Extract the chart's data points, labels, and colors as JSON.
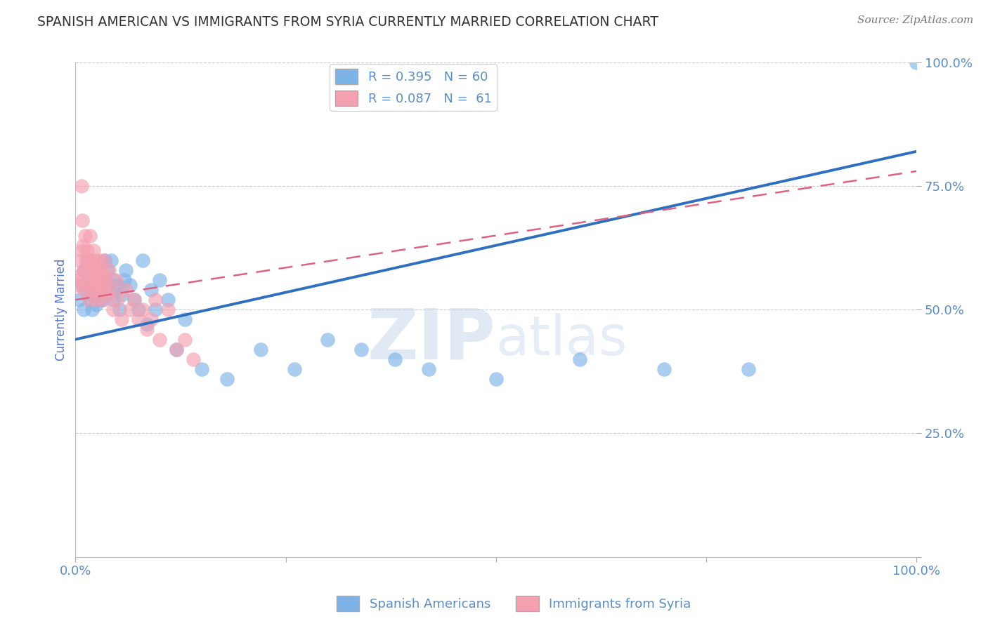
{
  "title": "SPANISH AMERICAN VS IMMIGRANTS FROM SYRIA CURRENTLY MARRIED CORRELATION CHART",
  "source": "Source: ZipAtlas.com",
  "ylabel": "Currently Married",
  "legend1_label": "Spanish Americans",
  "legend2_label": "Immigrants from Syria",
  "R1": 0.395,
  "N1": 60,
  "R2": 0.087,
  "N2": 61,
  "color1": "#7EB3E8",
  "color2": "#F4A0B0",
  "line1_color": "#2E6FBF",
  "line2_color": "#E06080",
  "xlim": [
    0.0,
    1.0
  ],
  "ylim": [
    0.0,
    1.0
  ],
  "blue_line_y0": 0.44,
  "blue_line_y1": 0.82,
  "pink_line_y0": 0.52,
  "pink_line_y1": 0.78,
  "blue_points_x": [
    0.005,
    0.008,
    0.01,
    0.01,
    0.012,
    0.015,
    0.015,
    0.017,
    0.018,
    0.02,
    0.02,
    0.022,
    0.022,
    0.025,
    0.025,
    0.025,
    0.027,
    0.028,
    0.03,
    0.03,
    0.032,
    0.032,
    0.035,
    0.035,
    0.037,
    0.038,
    0.04,
    0.042,
    0.045,
    0.045,
    0.048,
    0.05,
    0.052,
    0.055,
    0.058,
    0.06,
    0.065,
    0.07,
    0.075,
    0.08,
    0.085,
    0.09,
    0.095,
    0.1,
    0.11,
    0.12,
    0.13,
    0.15,
    0.18,
    0.22,
    0.26,
    0.3,
    0.34,
    0.38,
    0.42,
    0.5,
    0.6,
    0.7,
    0.8,
    1.0
  ],
  "blue_points_y": [
    0.52,
    0.55,
    0.58,
    0.5,
    0.54,
    0.6,
    0.56,
    0.52,
    0.57,
    0.53,
    0.5,
    0.58,
    0.55,
    0.57,
    0.54,
    0.51,
    0.55,
    0.52,
    0.57,
    0.53,
    0.56,
    0.52,
    0.6,
    0.56,
    0.53,
    0.58,
    0.55,
    0.6,
    0.52,
    0.56,
    0.54,
    0.55,
    0.5,
    0.53,
    0.56,
    0.58,
    0.55,
    0.52,
    0.5,
    0.6,
    0.47,
    0.54,
    0.5,
    0.56,
    0.52,
    0.42,
    0.48,
    0.38,
    0.36,
    0.42,
    0.38,
    0.44,
    0.42,
    0.4,
    0.38,
    0.36,
    0.4,
    0.38,
    0.38,
    1.0
  ],
  "pink_points_x": [
    0.003,
    0.005,
    0.005,
    0.006,
    0.007,
    0.008,
    0.008,
    0.009,
    0.01,
    0.01,
    0.011,
    0.012,
    0.012,
    0.013,
    0.014,
    0.015,
    0.015,
    0.016,
    0.017,
    0.018,
    0.018,
    0.019,
    0.02,
    0.021,
    0.022,
    0.022,
    0.023,
    0.024,
    0.025,
    0.025,
    0.026,
    0.027,
    0.028,
    0.029,
    0.03,
    0.031,
    0.032,
    0.033,
    0.034,
    0.035,
    0.036,
    0.038,
    0.04,
    0.042,
    0.045,
    0.048,
    0.05,
    0.055,
    0.06,
    0.065,
    0.07,
    0.075,
    0.08,
    0.085,
    0.09,
    0.095,
    0.1,
    0.11,
    0.12,
    0.13,
    0.14
  ],
  "pink_points_y": [
    0.55,
    0.6,
    0.56,
    0.57,
    0.75,
    0.68,
    0.62,
    0.63,
    0.58,
    0.54,
    0.65,
    0.6,
    0.55,
    0.58,
    0.62,
    0.56,
    0.6,
    0.52,
    0.65,
    0.58,
    0.54,
    0.6,
    0.56,
    0.62,
    0.58,
    0.54,
    0.57,
    0.6,
    0.55,
    0.52,
    0.58,
    0.54,
    0.6,
    0.56,
    0.58,
    0.54,
    0.52,
    0.56,
    0.6,
    0.57,
    0.55,
    0.53,
    0.58,
    0.54,
    0.5,
    0.56,
    0.52,
    0.48,
    0.54,
    0.5,
    0.52,
    0.48,
    0.5,
    0.46,
    0.48,
    0.52,
    0.44,
    0.5,
    0.42,
    0.44,
    0.4
  ],
  "watermark_zip": "ZIP",
  "watermark_atlas": "atlas",
  "background_color": "#FFFFFF",
  "grid_color": "#CCCCCC",
  "title_color": "#333333",
  "axis_label_color": "#5577CC",
  "tick_label_color": "#5B8EC4"
}
